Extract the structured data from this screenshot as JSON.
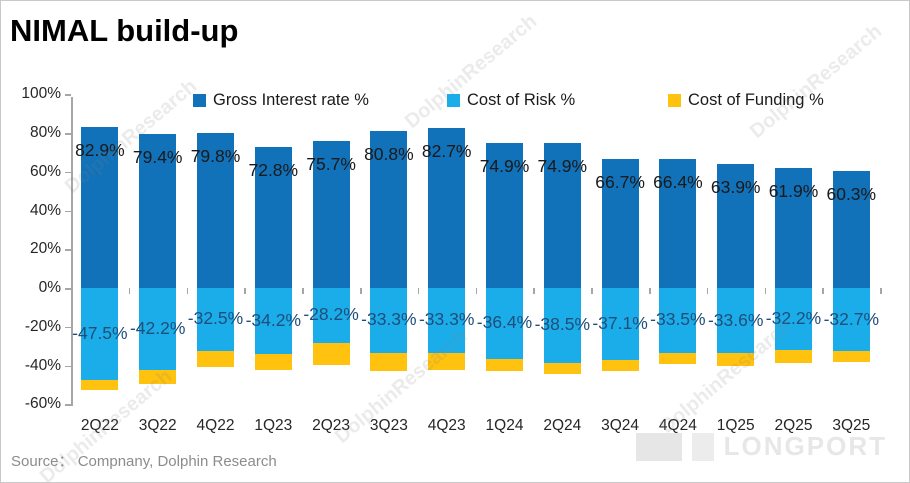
{
  "title": "NIMAL build-up",
  "source": {
    "label": "Source：",
    "text": "Compnany, Dolphin Research"
  },
  "watermarks": {
    "diagonal_text": "DolphinResearch",
    "brand_text": "LONGPORT"
  },
  "colors": {
    "gross_interest": "#1171b9",
    "cost_of_risk": "#1badea",
    "cost_of_funding": "#ffc20e",
    "axis": "#a6a6a6",
    "label_positive": "#1a1a1a",
    "label_negative": "#1f4e79",
    "source_text": "#8c8c8c"
  },
  "chart_data": {
    "type": "bar",
    "stacked": true,
    "title": "NIMAL build-up",
    "categories": [
      "2Q22",
      "3Q22",
      "4Q22",
      "1Q23",
      "2Q23",
      "3Q23",
      "4Q23",
      "1Q24",
      "2Q24",
      "3Q24",
      "4Q24",
      "1Q25",
      "2Q25",
      "3Q25"
    ],
    "series": [
      {
        "name": "Gross Interest rate %",
        "color": "#1171b9",
        "values": [
          82.9,
          79.4,
          79.8,
          72.8,
          75.7,
          80.8,
          82.7,
          74.9,
          74.9,
          66.7,
          66.4,
          63.9,
          61.9,
          60.3
        ],
        "labels_visible": true
      },
      {
        "name": "Cost of Risk %",
        "color": "#1badea",
        "values": [
          -47.5,
          -42.2,
          -32.5,
          -34.2,
          -28.2,
          -33.3,
          -33.3,
          -36.4,
          -38.5,
          -37.1,
          -33.5,
          -33.6,
          -32.2,
          -32.7
        ],
        "labels_visible": true
      },
      {
        "name": "Cost of Funding %",
        "color": "#ffc20e",
        "values": [
          -5.0,
          -7.3,
          -8.2,
          -8.1,
          -11.3,
          -9.5,
          -9.0,
          -6.7,
          -6.0,
          -5.5,
          -5.7,
          -6.8,
          -6.4,
          -5.7
        ],
        "labels_visible": false,
        "note": "values estimated from bar heights; no data labels shown in chart"
      }
    ],
    "ylim": [
      -60,
      100
    ],
    "ytick_step": 20,
    "ytick_format": "percent",
    "legend_position": "top",
    "grid": false
  }
}
